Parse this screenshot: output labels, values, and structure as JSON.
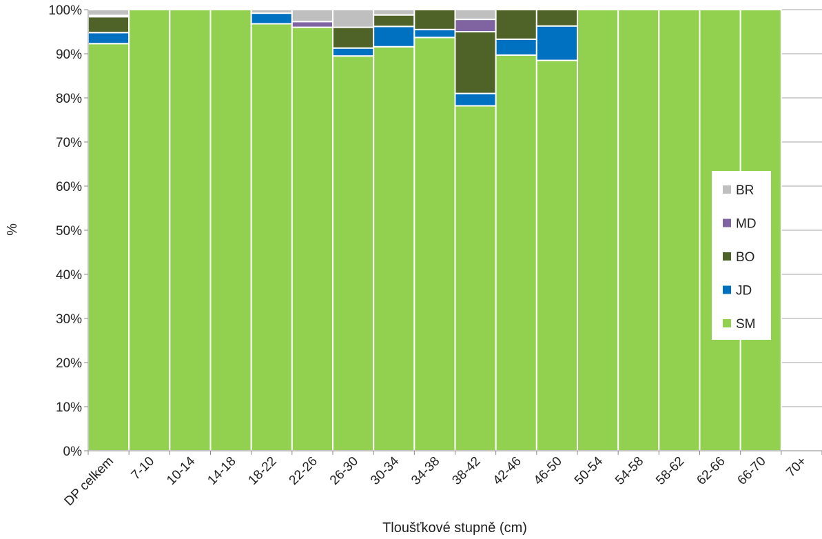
{
  "chart_data": {
    "type": "bar",
    "stacked": true,
    "normalized": true,
    "title": "",
    "xlabel": "Tloušťkové stupně (cm)",
    "ylabel": "%",
    "ylim": [
      0,
      100
    ],
    "y_ticks": [
      "0%",
      "10%",
      "20%",
      "30%",
      "40%",
      "50%",
      "60%",
      "70%",
      "80%",
      "90%",
      "100%"
    ],
    "categories": [
      "DP celkem",
      "7-10",
      "10-14",
      "14-18",
      "18-22",
      "22-26",
      "26-30",
      "30-34",
      "34-38",
      "38-42",
      "42-46",
      "46-50",
      "50-54",
      "54-58",
      "58-62",
      "62-66",
      "66-70",
      "70+"
    ],
    "series": [
      {
        "name": "SM",
        "color": "#92d050",
        "values": [
          92.3,
          100,
          100,
          100,
          96.8,
          96.0,
          89.5,
          91.6,
          93.7,
          78.2,
          89.7,
          88.5,
          100,
          100,
          100,
          100,
          100,
          0
        ]
      },
      {
        "name": "JD",
        "color": "#0070c0",
        "values": [
          2.5,
          0,
          0,
          0,
          2.4,
          0,
          1.8,
          4.6,
          1.8,
          2.8,
          3.6,
          7.8,
          0,
          0,
          0,
          0,
          0,
          0
        ]
      },
      {
        "name": "BO",
        "color": "#4f6228",
        "values": [
          3.6,
          0,
          0,
          0,
          0,
          0,
          4.7,
          2.6,
          4.5,
          14.0,
          6.7,
          3.7,
          0,
          0,
          0,
          0,
          0,
          0
        ]
      },
      {
        "name": "MD",
        "color": "#8064a2",
        "values": [
          0.3,
          0,
          0,
          0,
          0,
          1.3,
          0,
          0,
          0,
          2.8,
          0,
          0,
          0,
          0,
          0,
          0,
          0,
          0
        ]
      },
      {
        "name": "BR",
        "color": "#bfbfbf",
        "values": [
          1.3,
          0,
          0,
          0,
          0.8,
          2.7,
          4.0,
          1.2,
          0,
          2.2,
          0,
          0,
          0,
          0,
          0,
          0,
          0,
          0
        ]
      }
    ],
    "legend_order": [
      "BR",
      "MD",
      "BO",
      "JD",
      "SM"
    ],
    "legend_position": "right",
    "grid": true
  }
}
